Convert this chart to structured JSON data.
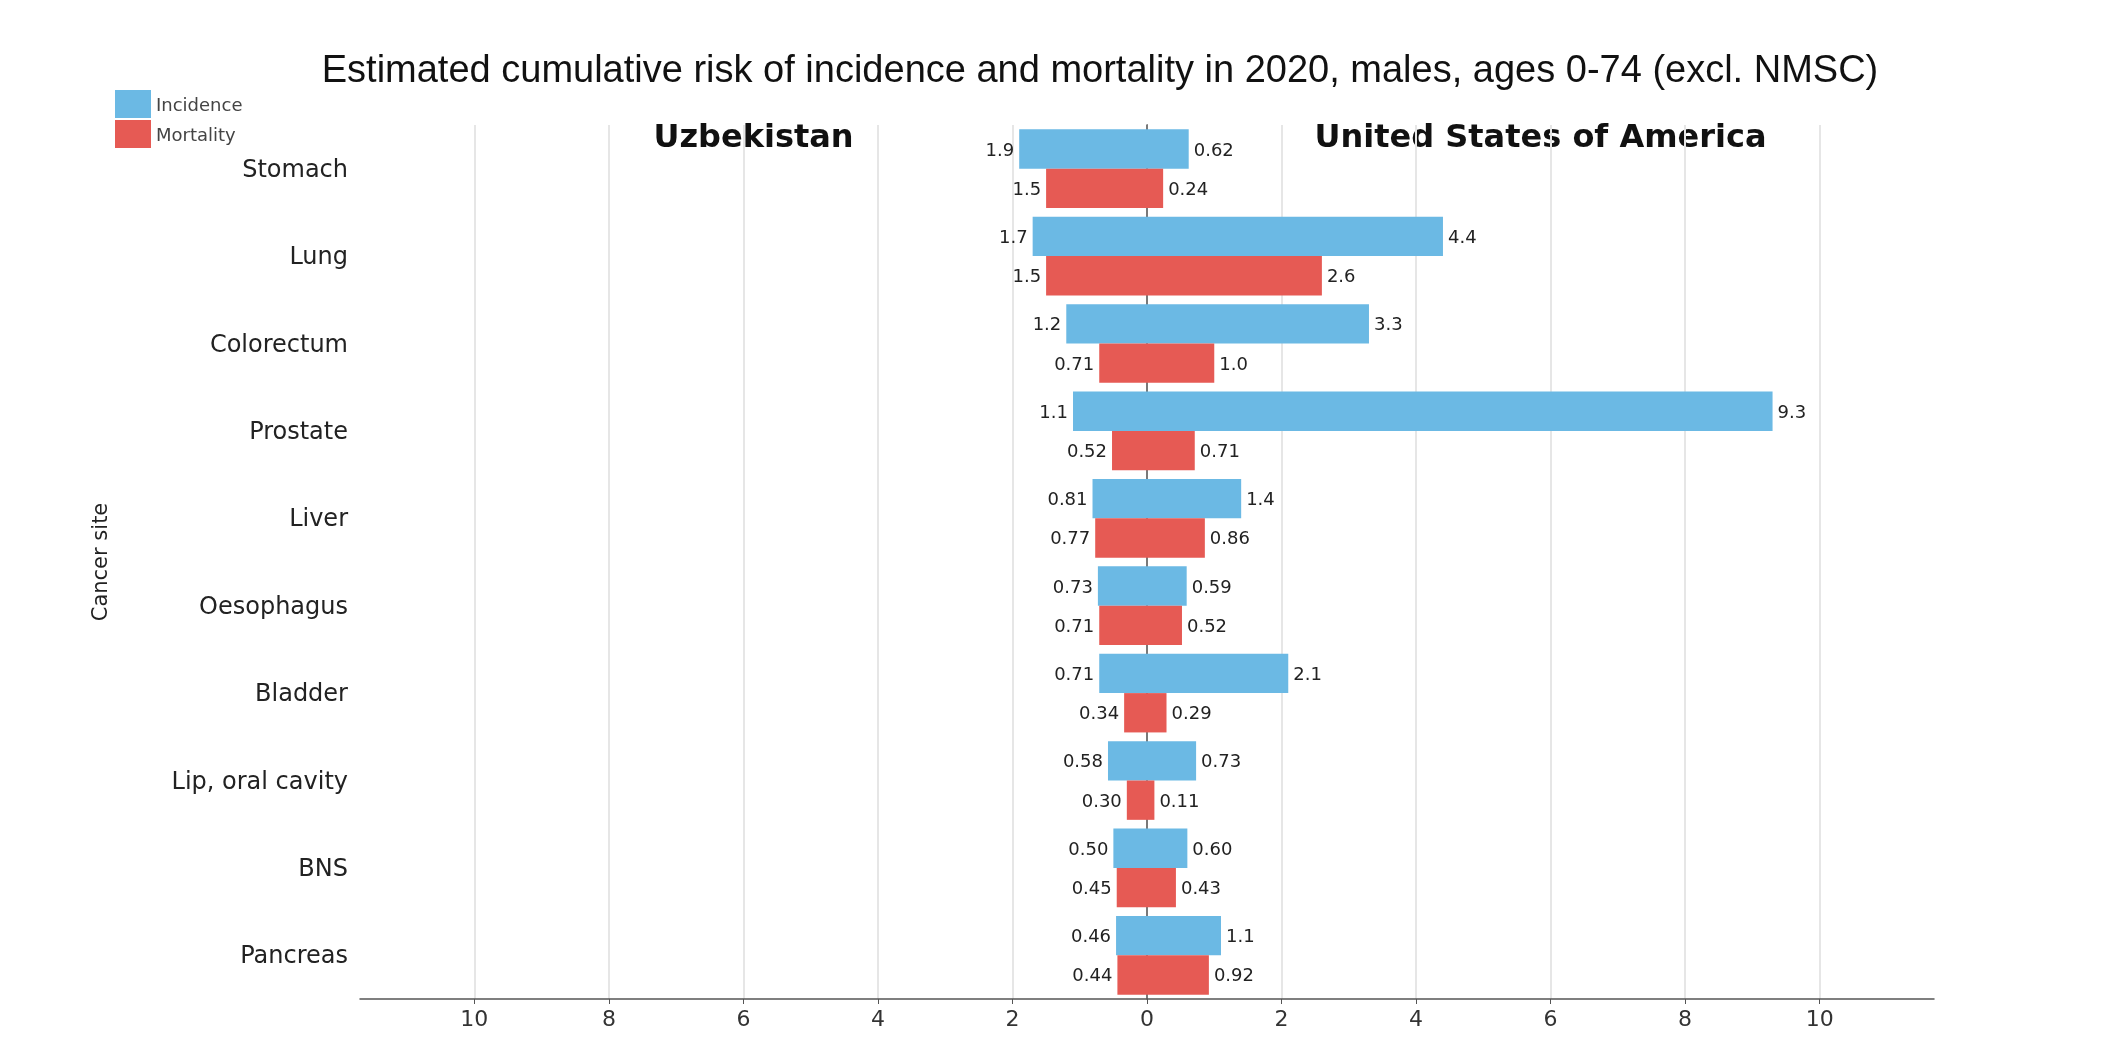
{
  "chart_data": [
    {
      "type": "bar",
      "orientation": "horizontal",
      "title": "Estimated cumulative risk of incidence and mortality in 2020, males, ages 0-74 (excl. NMSC)",
      "subtitle": "Uzbekistan",
      "ylabel": "Cancer site",
      "categories": [
        "Stomach",
        "Lung",
        "Colorectum",
        "Prostate",
        "Liver",
        "Oesophagus",
        "Bladder",
        "Lip, oral cavity",
        "BNS",
        "Pancreas"
      ],
      "series": [
        {
          "name": "Incidence",
          "color": "#6bb9e4",
          "values": [
            1.9,
            1.7,
            1.2,
            1.1,
            0.81,
            0.73,
            0.71,
            0.58,
            0.5,
            0.46
          ],
          "value_labels": [
            "1.9",
            "1.7",
            "1.2",
            "1.1",
            "0.81",
            "0.73",
            "0.71",
            "0.58",
            "0.50",
            "0.46"
          ]
        },
        {
          "name": "Mortality",
          "color": "#e65a54",
          "values": [
            1.5,
            1.5,
            0.71,
            0.52,
            0.77,
            0.71,
            0.34,
            0.3,
            0.45,
            0.44
          ],
          "value_labels": [
            "1.5",
            "1.5",
            "0.71",
            "0.52",
            "0.77",
            "0.71",
            "0.34",
            "0.30",
            "0.45",
            "0.44"
          ]
        }
      ],
      "xlim": [
        11.7,
        0
      ],
      "xticks": [
        10,
        8,
        6,
        4,
        2,
        0
      ],
      "grid": "x",
      "legend": "top left"
    },
    {
      "type": "bar",
      "orientation": "horizontal",
      "subtitle": "United States of America",
      "categories": [
        null,
        null,
        null,
        null,
        null,
        null,
        null,
        null,
        null,
        null
      ],
      "series": [
        {
          "color": "#6bb9e4",
          "values": [
            0.62,
            4.4,
            3.3,
            9.3,
            1.4,
            0.59,
            2.1,
            0.73,
            0.6,
            1.1
          ],
          "value_labels": [
            "0.62",
            "4.4",
            "3.3",
            "9.3",
            "1.4",
            "0.59",
            "2.1",
            "0.73",
            "0.60",
            "1.1"
          ]
        },
        {
          "color": "#e65a54",
          "values": [
            0.24,
            2.6,
            1.0,
            0.71,
            0.86,
            0.52,
            0.29,
            0.11,
            0.43,
            0.92
          ],
          "value_labels": [
            "0.24",
            "2.6",
            "1.0",
            "0.71",
            "0.86",
            "0.52",
            "0.29",
            "0.11",
            "0.43",
            "0.92"
          ]
        }
      ],
      "xlim": [
        0,
        11.7
      ],
      "xticks": [
        {
          "value": 0,
          "label": null
        },
        2,
        4,
        6,
        8,
        10
      ],
      "grid": "x",
      "tick_labels": "x"
    }
  ]
}
